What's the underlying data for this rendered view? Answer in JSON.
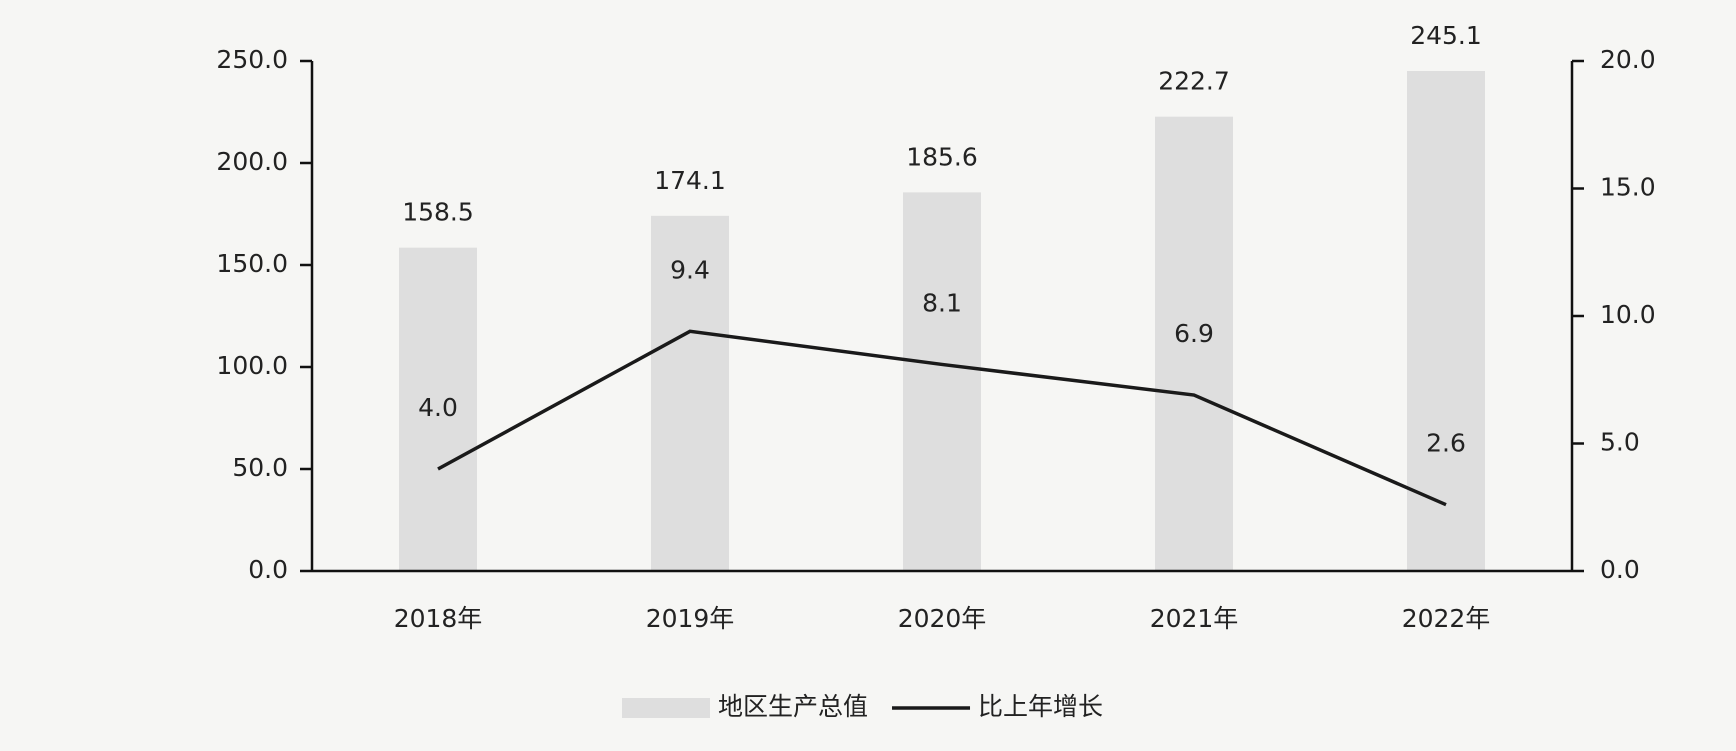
{
  "chart_data": {
    "type": "bar",
    "categories": [
      "2018年",
      "2019年",
      "2020年",
      "2021年",
      "2022年"
    ],
    "series": [
      {
        "name": "地区生产总值",
        "type": "bar",
        "color": "#dedede",
        "values": [
          158.5,
          174.1,
          185.6,
          222.7,
          245.1
        ]
      },
      {
        "name": "比上年增长",
        "type": "line",
        "axis": "y2",
        "color": "#1a1a1a",
        "values": [
          4.0,
          9.4,
          8.1,
          6.9,
          2.6
        ],
        "value_labels": [
          "4.0",
          "9.4",
          "8.1",
          "6.9",
          "2.6"
        ]
      }
    ],
    "ylim": [
      0,
      250
    ],
    "yticks": [
      {
        "value": 0,
        "label": "0.0"
      },
      {
        "value": 50,
        "label": "50.0"
      },
      {
        "value": 100,
        "label": "100.0"
      },
      {
        "value": 150,
        "label": "150.0"
      },
      {
        "value": 200,
        "label": "200.0"
      },
      {
        "value": 250,
        "label": "250.0"
      }
    ],
    "y2lim": [
      0,
      20
    ],
    "y2ticks": [
      {
        "value": 0,
        "label": "0.0"
      },
      {
        "value": 5,
        "label": "5.0"
      },
      {
        "value": 10,
        "label": "10.0"
      },
      {
        "value": 15,
        "label": "15.0"
      },
      {
        "value": 20,
        "label": "20.0"
      }
    ],
    "grid": false,
    "legend": "bottom"
  }
}
